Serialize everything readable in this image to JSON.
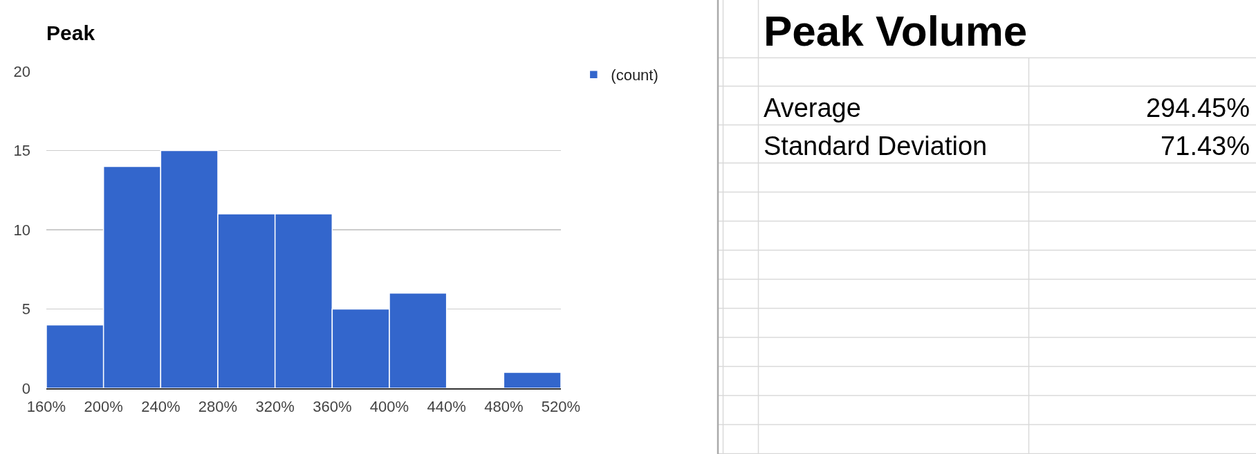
{
  "chart_data": [
    {
      "type": "histogram",
      "title": "Peak",
      "bins": [
        160,
        200,
        240,
        280,
        320,
        360,
        400,
        440,
        480,
        520
      ],
      "series": [
        {
          "name": "(count)",
          "color": "#3366cc",
          "values": [
            4,
            14,
            15,
            11,
            11,
            5,
            6,
            0,
            1
          ]
        }
      ],
      "xlim": [
        160,
        520
      ],
      "xticks": [
        {
          "value": 160,
          "label": "160%"
        },
        {
          "value": 200,
          "label": "200%"
        },
        {
          "value": 240,
          "label": "240%"
        },
        {
          "value": 280,
          "label": "280%"
        },
        {
          "value": 320,
          "label": "320%"
        },
        {
          "value": 360,
          "label": "360%"
        },
        {
          "value": 400,
          "label": "400%"
        },
        {
          "value": 440,
          "label": "440%"
        },
        {
          "value": 480,
          "label": "480%"
        },
        {
          "value": 520,
          "label": "520%"
        }
      ],
      "ylim": [
        0,
        20
      ],
      "yticks": [
        0,
        5,
        10,
        15,
        20
      ],
      "grid": "y",
      "legend": "top right"
    },
    {
      "type": "other",
      "title": "Peak Volume",
      "annotations": [
        "Average",
        "294.45%",
        "Standard Deviation",
        "71.43%"
      ]
    }
  ]
}
